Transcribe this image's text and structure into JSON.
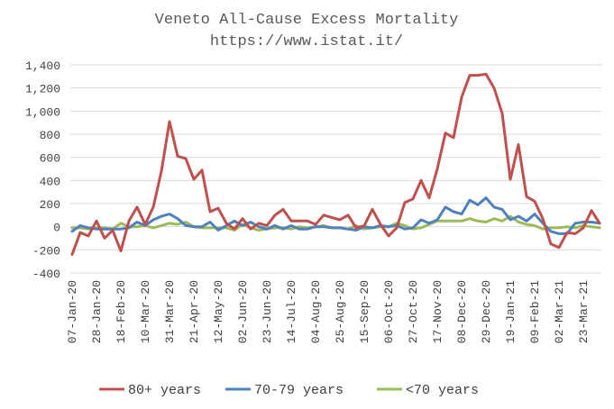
{
  "chart_data": {
    "type": "line",
    "title": "Veneto All-Cause Excess Mortality",
    "subtitle": "https://www.istat.it/",
    "xlabel": "",
    "ylabel": "",
    "ylim": [
      -400,
      1400
    ],
    "yticks": [
      -400,
      -200,
      0,
      200,
      400,
      600,
      800,
      1000,
      1200,
      1400
    ],
    "ytick_labels": [
      "-400",
      "-200",
      "0",
      "200",
      "400",
      "600",
      "800",
      "1,000",
      "1,200",
      "1,400"
    ],
    "grid": true,
    "legend_position": "bottom",
    "x_labels": [
      "07-Jan-20",
      "28-Jan-20",
      "18-Feb-20",
      "10-Mar-20",
      "31-Mar-20",
      "21-Apr-20",
      "12-May-20",
      "02-Jun-20",
      "23-Jun-20",
      "14-Jul-20",
      "04-Aug-20",
      "25-Aug-20",
      "15-Sep-20",
      "06-Oct-20",
      "27-Oct-20",
      "17-Nov-20",
      "08-Dec-20",
      "29-Dec-20",
      "19-Jan-21",
      "09-Feb-21",
      "02-Mar-21",
      "23-Mar-21"
    ],
    "x_label_every": 3,
    "series": [
      {
        "name": "80+ years",
        "color": "#c0504d",
        "values": [
          -240,
          -50,
          -80,
          50,
          -100,
          -30,
          -210,
          50,
          170,
          20,
          170,
          480,
          910,
          610,
          590,
          410,
          490,
          130,
          160,
          30,
          -20,
          70,
          -20,
          30,
          10,
          100,
          150,
          50,
          50,
          50,
          20,
          100,
          80,
          60,
          100,
          -10,
          10,
          150,
          20,
          -80,
          -10,
          210,
          240,
          400,
          250,
          500,
          810,
          770,
          1120,
          1310,
          1310,
          1320,
          1200,
          980,
          410,
          710,
          260,
          220,
          70,
          -150,
          -180,
          -50,
          -60,
          -10,
          140,
          30
        ]
      },
      {
        "name": "70-79 years",
        "color": "#4f81bd",
        "values": [
          -40,
          10,
          -10,
          -20,
          -20,
          -20,
          -20,
          -10,
          40,
          10,
          60,
          90,
          110,
          70,
          10,
          0,
          0,
          40,
          -30,
          10,
          50,
          10,
          40,
          0,
          -20,
          10,
          -20,
          10,
          -20,
          -20,
          0,
          0,
          -10,
          -10,
          -20,
          -30,
          0,
          -10,
          10,
          0,
          10,
          -20,
          -10,
          60,
          30,
          60,
          170,
          130,
          110,
          230,
          190,
          250,
          170,
          150,
          60,
          90,
          50,
          110,
          30,
          -40,
          -60,
          -60,
          30,
          40,
          40,
          30
        ]
      },
      {
        "name": "<70 years",
        "color": "#9bbb59",
        "values": [
          -10,
          -10,
          -20,
          -10,
          -10,
          -20,
          30,
          0,
          0,
          10,
          -10,
          10,
          30,
          20,
          40,
          0,
          -10,
          -10,
          -10,
          -10,
          -30,
          20,
          -10,
          -30,
          -20,
          -10,
          -10,
          -20,
          0,
          -10,
          0,
          10,
          -10,
          -10,
          -20,
          10,
          -20,
          -10,
          0,
          0,
          30,
          10,
          -20,
          -10,
          20,
          50,
          50,
          50,
          50,
          70,
          50,
          40,
          70,
          50,
          90,
          40,
          20,
          10,
          -20,
          -10,
          -10,
          0,
          -10,
          10,
          0,
          -10
        ]
      }
    ]
  }
}
